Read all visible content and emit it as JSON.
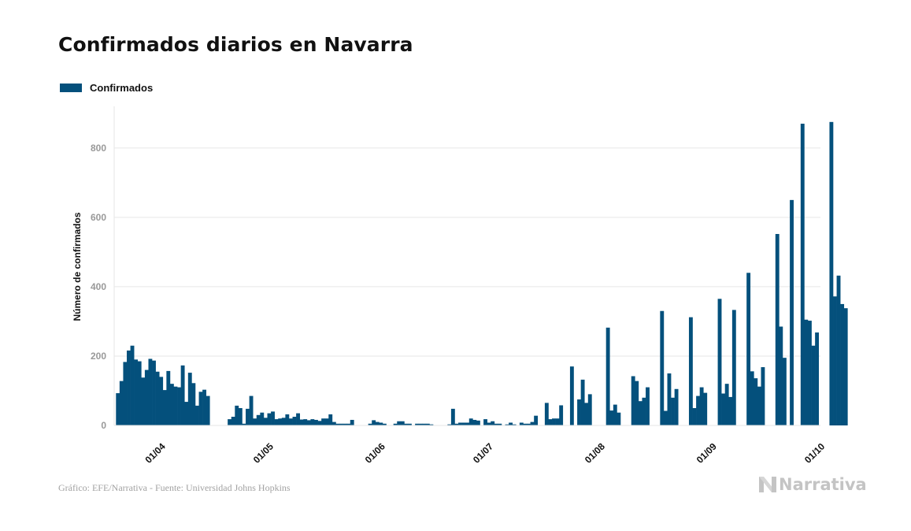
{
  "title": "Confirmados diarios en Navarra",
  "footer": {
    "source": "Gráfico: EFE/Narrativa - Fuente: Universidad Johns Hopkins",
    "brand": "Narrativa",
    "brand_icon": "narrativa-n-logo-icon"
  },
  "colors": {
    "bar": "#04507c",
    "grid": "#e6e6e6",
    "tick_text": "#999999",
    "axis_text": "#111111"
  },
  "chart_data": {
    "type": "bar",
    "title": "Confirmados diarios en Navarra",
    "ylabel": "Número de confirmados",
    "xlabel": "",
    "ylim": [
      0,
      920
    ],
    "yticks": [
      0,
      200,
      400,
      600,
      800
    ],
    "grid": true,
    "legend_position": "top-left",
    "x_tick_labels": [
      "01/04",
      "01/05",
      "01/06",
      "01/07",
      "01/08",
      "01/09",
      "01/10"
    ],
    "x_tick_dates": [
      "2020-04-01",
      "2020-05-01",
      "2020-06-01",
      "2020-07-01",
      "2020-08-01",
      "2020-09-01",
      "2020-10-01"
    ],
    "x_range": [
      "2020-03-20",
      "2020-10-02"
    ],
    "start_date": "2020-03-21",
    "series": [
      {
        "name": "Confirmados",
        "values": [
          93,
          128,
          183,
          216,
          230,
          190,
          185,
          138,
          160,
          192,
          187,
          155,
          140,
          102,
          157,
          120,
          112,
          110,
          173,
          68,
          152,
          122,
          57,
          97,
          103,
          85,
          0,
          0,
          0,
          0,
          0,
          18,
          25,
          57,
          50,
          5,
          48,
          85,
          20,
          30,
          37,
          22,
          35,
          40,
          18,
          20,
          22,
          32,
          20,
          25,
          35,
          17,
          18,
          15,
          18,
          16,
          13,
          20,
          20,
          32,
          10,
          5,
          5,
          5,
          5,
          16,
          0,
          0,
          0,
          0,
          5,
          15,
          10,
          8,
          5,
          0,
          0,
          5,
          12,
          12,
          5,
          5,
          0,
          5,
          5,
          5,
          5,
          3,
          0,
          0,
          0,
          0,
          3,
          48,
          5,
          8,
          8,
          8,
          20,
          16,
          14,
          0,
          18,
          8,
          12,
          5,
          5,
          0,
          3,
          8,
          3,
          0,
          8,
          5,
          5,
          10,
          28,
          0,
          0,
          65,
          18,
          20,
          20,
          58,
          0,
          0,
          170,
          0,
          75,
          132,
          65,
          90,
          0,
          0,
          0,
          0,
          282,
          43,
          60,
          37,
          0,
          0,
          0,
          142,
          128,
          70,
          80,
          110,
          0,
          0,
          0,
          330,
          42,
          150,
          80,
          105,
          0,
          0,
          0,
          312,
          50,
          85,
          110,
          94,
          0,
          0,
          0,
          365,
          92,
          120,
          82,
          333,
          0,
          0,
          0,
          440,
          156,
          136,
          112,
          168,
          0,
          0,
          0,
          552,
          285,
          195,
          0,
          650,
          0,
          0,
          870,
          305,
          302,
          230,
          268,
          0,
          0,
          0,
          875,
          372,
          432,
          350,
          338
        ]
      }
    ]
  }
}
